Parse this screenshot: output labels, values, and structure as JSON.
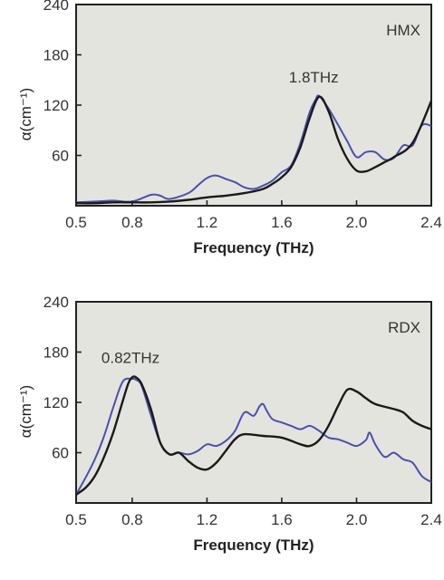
{
  "chart_data": [
    {
      "type": "line",
      "panel_label": "HMX",
      "xlabel": "Frequency (THz)",
      "ylabel": "α(cm⁻¹)",
      "xlim": [
        0.5,
        2.4
      ],
      "ylim": [
        0,
        240
      ],
      "x_ticks": [
        "0.5",
        "0.8",
        "1.2",
        "1.6",
        "2.0",
        "2.4"
      ],
      "x_tick_values": [
        0.5,
        0.8,
        1.2,
        1.6,
        2.0,
        2.4
      ],
      "y_ticks": [
        "60",
        "120",
        "180",
        "240"
      ],
      "y_tick_values": [
        60,
        120,
        180,
        240
      ],
      "annotation": {
        "text": "1.8THz",
        "x": 1.8,
        "y": 130
      },
      "series": [
        {
          "color": "#4a4fb0",
          "x": [
            0.5,
            0.6,
            0.7,
            0.8,
            0.9,
            0.95,
            1.0,
            1.1,
            1.15,
            1.2,
            1.25,
            1.3,
            1.35,
            1.4,
            1.45,
            1.5,
            1.55,
            1.6,
            1.65,
            1.7,
            1.75,
            1.78,
            1.8,
            1.85,
            1.9,
            1.95,
            2.0,
            2.05,
            2.1,
            2.15,
            2.2,
            2.25,
            2.3,
            2.35,
            2.4
          ],
          "y": [
            4,
            5,
            6,
            5,
            13,
            12,
            8,
            15,
            24,
            33,
            36,
            32,
            28,
            22,
            20,
            24,
            30,
            40,
            48,
            75,
            112,
            126,
            131,
            116,
            97,
            77,
            58,
            64,
            64,
            55,
            57,
            72,
            72,
            96,
            95
          ]
        },
        {
          "color": "#1a1a1a",
          "x": [
            0.5,
            0.6,
            0.7,
            0.8,
            0.9,
            1.0,
            1.1,
            1.2,
            1.3,
            1.4,
            1.5,
            1.55,
            1.6,
            1.65,
            1.7,
            1.75,
            1.8,
            1.85,
            1.9,
            1.95,
            2.0,
            2.05,
            2.1,
            2.15,
            2.2,
            2.3,
            2.4
          ],
          "y": [
            3,
            3,
            4,
            4,
            4,
            5,
            7,
            10,
            12,
            15,
            20,
            26,
            34,
            46,
            70,
            105,
            130,
            113,
            80,
            56,
            42,
            41,
            46,
            52,
            58,
            75,
            125
          ]
        }
      ]
    },
    {
      "type": "line",
      "panel_label": "RDX",
      "xlabel": "Frequency (THz)",
      "ylabel": "α(cm⁻¹)",
      "xlim": [
        0.5,
        2.4
      ],
      "ylim": [
        0,
        240
      ],
      "x_ticks": [
        "0.5",
        "0.8",
        "1.2",
        "1.6",
        "2.0",
        "2.4"
      ],
      "x_tick_values": [
        0.5,
        0.8,
        1.2,
        1.6,
        2.0,
        2.4
      ],
      "y_ticks": [
        "60",
        "120",
        "180",
        "240"
      ],
      "y_tick_values": [
        60,
        120,
        180,
        240
      ],
      "annotation": {
        "text": "0.82THz",
        "x": 0.82,
        "y": 150
      },
      "series": [
        {
          "color": "#4a4fb0",
          "x": [
            0.5,
            0.55,
            0.6,
            0.65,
            0.7,
            0.75,
            0.8,
            0.82,
            0.85,
            0.9,
            0.95,
            1.0,
            1.05,
            1.1,
            1.15,
            1.2,
            1.25,
            1.3,
            1.35,
            1.4,
            1.45,
            1.48,
            1.5,
            1.52,
            1.55,
            1.6,
            1.65,
            1.7,
            1.75,
            1.8,
            1.85,
            1.9,
            1.95,
            2.0,
            2.05,
            2.07,
            2.1,
            2.15,
            2.2,
            2.25,
            2.3,
            2.35,
            2.4
          ],
          "y": [
            10,
            30,
            52,
            80,
            115,
            145,
            148,
            147,
            140,
            105,
            72,
            58,
            60,
            58,
            62,
            70,
            68,
            74,
            86,
            108,
            104,
            115,
            118,
            110,
            100,
            96,
            92,
            88,
            92,
            86,
            78,
            76,
            72,
            68,
            75,
            84,
            70,
            55,
            60,
            52,
            48,
            32,
            25
          ]
        },
        {
          "color": "#1a1a1a",
          "x": [
            0.5,
            0.55,
            0.6,
            0.65,
            0.7,
            0.75,
            0.78,
            0.8,
            0.82,
            0.85,
            0.9,
            0.95,
            1.0,
            1.05,
            1.1,
            1.15,
            1.2,
            1.25,
            1.3,
            1.35,
            1.4,
            1.5,
            1.6,
            1.7,
            1.75,
            1.8,
            1.85,
            1.9,
            1.95,
            2.0,
            2.05,
            2.1,
            2.2,
            2.25,
            2.3,
            2.35,
            2.4
          ],
          "y": [
            10,
            18,
            32,
            55,
            85,
            122,
            143,
            150,
            150,
            142,
            112,
            72,
            58,
            60,
            50,
            42,
            40,
            48,
            62,
            76,
            82,
            80,
            78,
            70,
            68,
            75,
            92,
            115,
            135,
            133,
            125,
            118,
            112,
            108,
            98,
            92,
            88
          ]
        }
      ]
    }
  ]
}
